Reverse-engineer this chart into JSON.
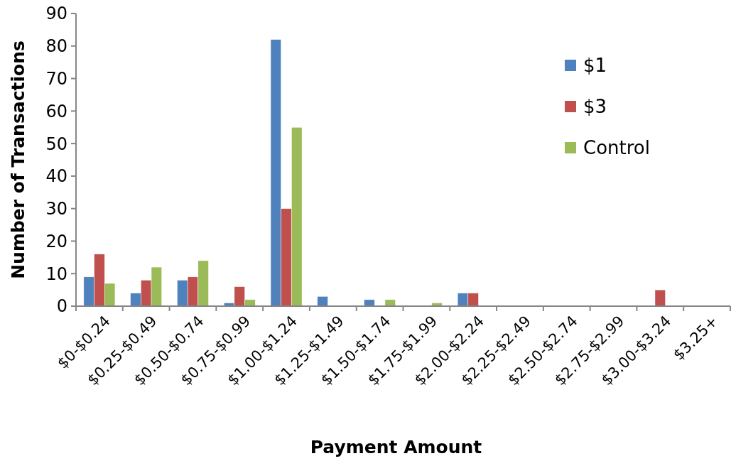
{
  "chart_data": {
    "type": "bar",
    "xlabel": "Payment Amount",
    "ylabel": "Number of Transactions",
    "categories": [
      "$0-$0.24",
      "$0.25-$0.49",
      "$0.50-$0.74",
      "$0.75-$0.99",
      "$1.00-$1.24",
      "$1.25-$1.49",
      "$1.50-$1.74",
      "$1.75-$1.99",
      "$2.00-$2.24",
      "$2.25-$2.49",
      "$2.50-$2.74",
      "$2.75-$2.99",
      "$3.00-$3.24",
      "$3.25+"
    ],
    "series": [
      {
        "name": "$1",
        "color": "#4f81bd",
        "values": [
          9,
          4,
          8,
          1,
          82,
          3,
          2,
          0,
          4,
          0,
          0,
          0,
          0,
          0
        ]
      },
      {
        "name": "$3",
        "color": "#c0504d",
        "values": [
          16,
          8,
          9,
          6,
          30,
          0,
          0,
          0,
          4,
          0,
          0,
          0,
          5,
          0
        ]
      },
      {
        "name": "Control",
        "color": "#9bbb59",
        "values": [
          7,
          12,
          14,
          2,
          55,
          0,
          2,
          1,
          0,
          0,
          0,
          0,
          0,
          0
        ]
      }
    ],
    "ylim": [
      0,
      90
    ],
    "yticks": [
      0,
      10,
      20,
      30,
      40,
      50,
      60,
      70,
      80,
      90
    ],
    "legend": "top right"
  }
}
